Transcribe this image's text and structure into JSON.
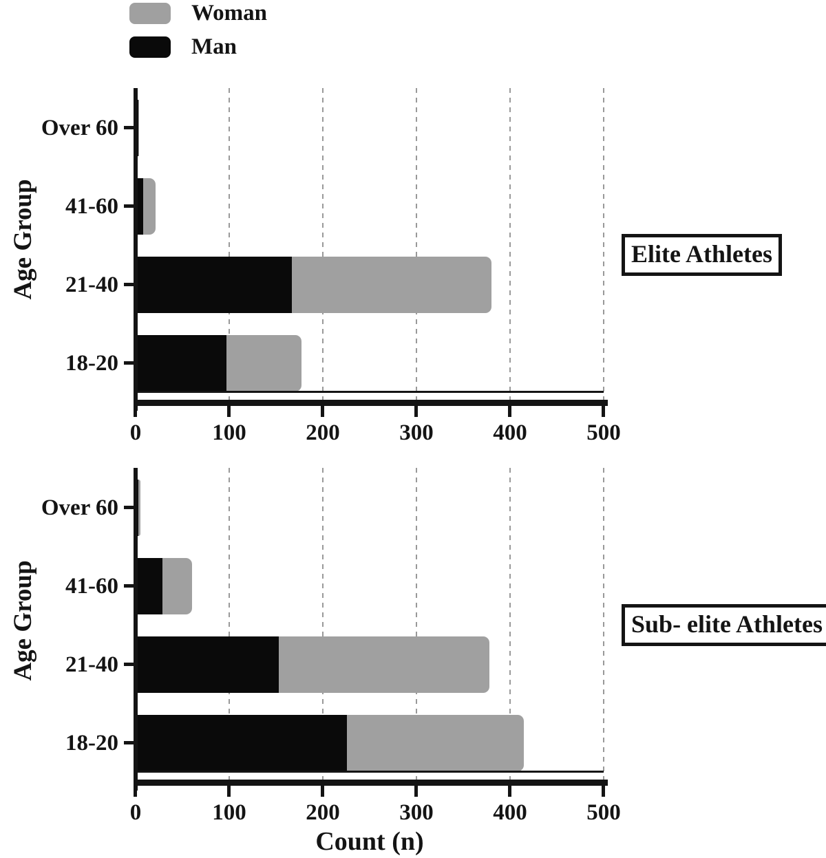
{
  "legend": {
    "items": [
      {
        "label": "Woman",
        "color": "#a0a0a0"
      },
      {
        "label": "Man",
        "color": "#0a0a0a"
      }
    ]
  },
  "colors": {
    "grid": "#999999",
    "axis": "#141414",
    "woman": "#a0a0a0",
    "man": "#0a0a0a"
  },
  "chart_data": [
    {
      "type": "bar",
      "orientation": "horizontal",
      "stacked": true,
      "group_label": "Elite Athletes",
      "ylabel": "Age Group",
      "xlabel": "Count (n)",
      "xlim": [
        0,
        500
      ],
      "xticks": [
        0,
        100,
        200,
        300,
        400,
        500
      ],
      "grid": "dashed-vertical",
      "legend_position": "top-left",
      "categories": [
        "Over 60",
        "41-60",
        "21-40",
        "18-20"
      ],
      "series": [
        {
          "name": "Man",
          "color": "#0a0a0a",
          "values": [
            3,
            8,
            167,
            97
          ]
        },
        {
          "name": "Woman",
          "color": "#a0a0a0",
          "values": [
            1,
            13,
            213,
            80
          ]
        }
      ]
    },
    {
      "type": "bar",
      "orientation": "horizontal",
      "stacked": true,
      "group_label": "Sub- elite Athletes",
      "ylabel": "Age Group",
      "xlabel": "Count (n)",
      "xlim": [
        0,
        500
      ],
      "xticks": [
        0,
        100,
        200,
        300,
        400,
        500
      ],
      "grid": "dashed-vertical",
      "legend_position": "none",
      "categories": [
        "Over 60",
        "41-60",
        "21-40",
        "18-20"
      ],
      "series": [
        {
          "name": "Man",
          "color": "#0a0a0a",
          "values": [
            3,
            29,
            153,
            226
          ]
        },
        {
          "name": "Woman",
          "color": "#a0a0a0",
          "values": [
            2,
            31,
            225,
            189
          ]
        }
      ]
    }
  ]
}
